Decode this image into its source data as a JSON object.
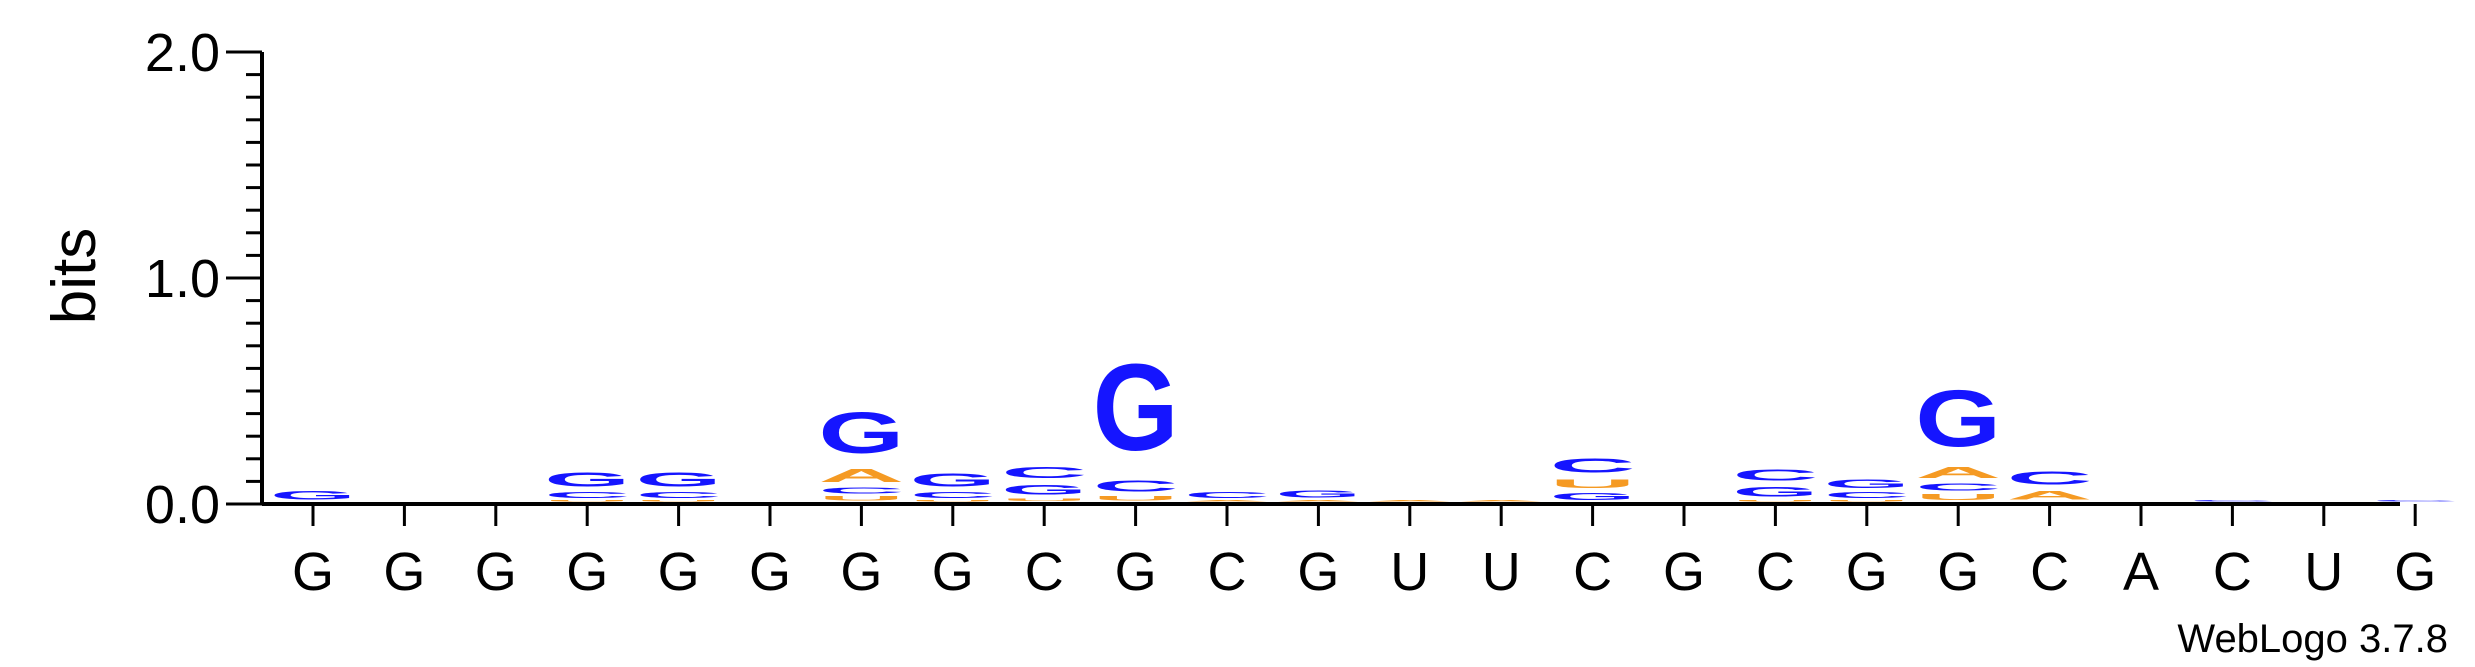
{
  "chart_data": {
    "type": "sequence-logo",
    "ylabel": "bits",
    "ylim": [
      0,
      2.0
    ],
    "y_ticks": [
      "0.0",
      "1.0",
      "2.0"
    ],
    "y_tick_values": [
      0,
      1.0,
      2.0
    ],
    "colors": {
      "G": "#1515ff",
      "C": "#1515ff",
      "A": "#f59a23",
      "U": "#f59a23"
    },
    "sequence": [
      "G",
      "G",
      "G",
      "G",
      "G",
      "G",
      "G",
      "G",
      "C",
      "G",
      "C",
      "G",
      "U",
      "U",
      "C",
      "G",
      "C",
      "G",
      "G",
      "C",
      "A",
      "C",
      "U",
      "G"
    ],
    "positions": [
      {
        "stack": [
          {
            "letter": "G",
            "bits": 0.06
          }
        ]
      },
      {
        "stack": []
      },
      {
        "stack": []
      },
      {
        "stack": [
          {
            "letter": "U",
            "bits": 0.01
          },
          {
            "letter": "C",
            "bits": 0.04
          },
          {
            "letter": "G",
            "bits": 0.1
          }
        ]
      },
      {
        "stack": [
          {
            "letter": "U",
            "bits": 0.01
          },
          {
            "letter": "C",
            "bits": 0.04
          },
          {
            "letter": "G",
            "bits": 0.1
          }
        ]
      },
      {
        "stack": []
      },
      {
        "stack": [
          {
            "letter": "U",
            "bits": 0.03
          },
          {
            "letter": "C",
            "bits": 0.04
          },
          {
            "letter": "A",
            "bits": 0.09
          },
          {
            "letter": "G",
            "bits": 0.29
          }
        ]
      },
      {
        "stack": [
          {
            "letter": "U",
            "bits": 0.01
          },
          {
            "letter": "C",
            "bits": 0.04
          },
          {
            "letter": "G",
            "bits": 0.09
          }
        ]
      },
      {
        "stack": [
          {
            "letter": "U",
            "bits": 0.02
          },
          {
            "letter": "G",
            "bits": 0.07
          },
          {
            "letter": "C",
            "bits": 0.08
          }
        ]
      },
      {
        "stack": [
          {
            "letter": "U",
            "bits": 0.03
          },
          {
            "letter": "C",
            "bits": 0.08
          },
          {
            "letter": "G",
            "bits": 0.61
          }
        ]
      },
      {
        "stack": [
          {
            "letter": "A",
            "bits": 0.01
          },
          {
            "letter": "C",
            "bits": 0.04
          }
        ]
      },
      {
        "stack": [
          {
            "letter": "A",
            "bits": 0.01
          },
          {
            "letter": "G",
            "bits": 0.05
          }
        ]
      },
      {
        "stack": [
          {
            "letter": "A",
            "bits": 0.01
          }
        ]
      },
      {
        "stack": [
          {
            "letter": "A",
            "bits": 0.01
          }
        ]
      },
      {
        "stack": [
          {
            "letter": "G",
            "bits": 0.05
          },
          {
            "letter": "U",
            "bits": 0.06
          },
          {
            "letter": "C",
            "bits": 0.1
          }
        ]
      },
      {
        "stack": []
      },
      {
        "stack": [
          {
            "letter": "U",
            "bits": 0.01
          },
          {
            "letter": "G",
            "bits": 0.07
          },
          {
            "letter": "C",
            "bits": 0.08
          }
        ]
      },
      {
        "stack": [
          {
            "letter": "U",
            "bits": 0.01
          },
          {
            "letter": "C",
            "bits": 0.04
          },
          {
            "letter": "G",
            "bits": 0.06
          }
        ]
      },
      {
        "stack": [
          {
            "letter": "U",
            "bits": 0.04
          },
          {
            "letter": "C",
            "bits": 0.05
          },
          {
            "letter": "A",
            "bits": 0.08
          },
          {
            "letter": "G",
            "bits": 0.4
          }
        ]
      },
      {
        "stack": [
          {
            "letter": "A",
            "bits": 0.06
          },
          {
            "letter": "C",
            "bits": 0.09
          }
        ]
      },
      {
        "stack": []
      },
      {
        "stack": [
          {
            "letter": "C",
            "bits": 0.01
          }
        ]
      },
      {
        "stack": []
      },
      {
        "stack": [
          {
            "letter": "C",
            "bits": 0.01
          }
        ]
      }
    ]
  },
  "credit": "WebLogo 3.7.8"
}
